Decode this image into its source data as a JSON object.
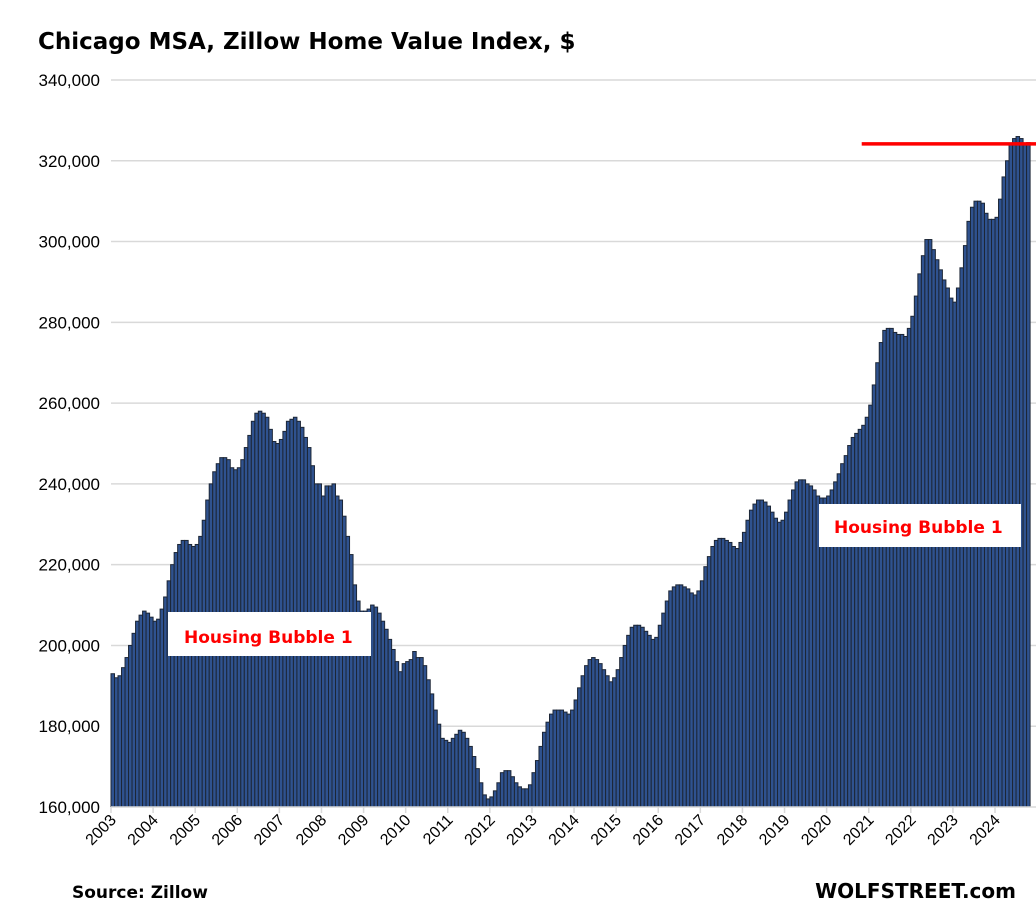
{
  "chart_data": {
    "type": "bar",
    "title": "Chicago MSA, Zillow Home Value Index, $",
    "xlabel": "",
    "ylabel": "",
    "ylim": [
      160000,
      340000
    ],
    "yticks": [
      "160,000",
      "180,000",
      "200,000",
      "220,000",
      "240,000",
      "260,000",
      "280,000",
      "300,000",
      "320,000",
      "340,000"
    ],
    "xticks": [
      "2003",
      "2004",
      "2005",
      "2006",
      "2007",
      "2008",
      "2009",
      "2010",
      "2011",
      "2012",
      "2013",
      "2014",
      "2015",
      "2016",
      "2017",
      "2018",
      "2019",
      "2020",
      "2021",
      "2022",
      "2023",
      "2024"
    ],
    "frequency": "monthly",
    "start": "2003-01",
    "grid": true,
    "colors": {
      "bar_fill": "#2f528f",
      "bar_edge": "#1c2636",
      "annotation": "#ff0000",
      "grid": "#d9d9d9"
    },
    "values": [
      193000,
      192000,
      192500,
      194500,
      197000,
      200000,
      203000,
      206000,
      207500,
      208500,
      208000,
      207000,
      206000,
      206500,
      209000,
      212000,
      216000,
      220000,
      223000,
      225000,
      226000,
      226000,
      225000,
      224500,
      225000,
      227000,
      231000,
      236000,
      240000,
      243000,
      245000,
      246500,
      246500,
      246000,
      244000,
      243500,
      244000,
      246000,
      249000,
      252000,
      255500,
      257500,
      258000,
      257500,
      256500,
      253500,
      250500,
      250000,
      251000,
      253000,
      255500,
      256000,
      256500,
      255500,
      254000,
      251500,
      249000,
      244500,
      240000,
      240000,
      237000,
      239500,
      239500,
      240000,
      237000,
      236000,
      232000,
      227000,
      222500,
      215000,
      211000,
      208500,
      208500,
      209000,
      210000,
      209500,
      208000,
      206000,
      204000,
      201500,
      199000,
      196000,
      193500,
      195500,
      196000,
      196500,
      198500,
      197000,
      197000,
      195000,
      191500,
      188000,
      184000,
      180500,
      177000,
      176500,
      176000,
      177000,
      178000,
      179000,
      178500,
      177000,
      175000,
      172500,
      169500,
      166000,
      163000,
      162000,
      162500,
      164000,
      166000,
      168500,
      169000,
      169000,
      167500,
      166000,
      165000,
      164500,
      164500,
      165500,
      168500,
      171500,
      175000,
      178500,
      181000,
      183000,
      184000,
      184000,
      184000,
      183500,
      183000,
      184000,
      186500,
      189500,
      192500,
      195000,
      196500,
      197000,
      196500,
      195500,
      194000,
      192500,
      191000,
      192000,
      194000,
      197000,
      200000,
      202500,
      204500,
      205000,
      205000,
      204500,
      203500,
      202500,
      201500,
      202000,
      205000,
      208000,
      211000,
      213500,
      214500,
      215000,
      215000,
      214500,
      214000,
      213000,
      212500,
      213500,
      216000,
      219500,
      222000,
      224500,
      226000,
      226500,
      226500,
      226000,
      225500,
      224500,
      224000,
      225500,
      228000,
      231000,
      233500,
      235000,
      236000,
      236000,
      235500,
      234500,
      233000,
      231500,
      230500,
      231000,
      233000,
      236000,
      238500,
      240500,
      241000,
      241000,
      240000,
      239500,
      238500,
      237000,
      236500,
      236500,
      237000,
      238500,
      240500,
      242500,
      245000,
      247000,
      249500,
      251500,
      252500,
      253500,
      254500,
      256500,
      259500,
      264500,
      270000,
      275000,
      278000,
      278500,
      278500,
      277500,
      277000,
      277000,
      276500,
      278500,
      281500,
      286500,
      292000,
      296500,
      300500,
      300500,
      298000,
      295500,
      293000,
      290500,
      288500,
      286000,
      285000,
      288500,
      293500,
      299000,
      305000,
      308500,
      310000,
      310000,
      309500,
      307000,
      305500,
      305500,
      306000,
      310500,
      316000,
      320000,
      324000,
      325500,
      326000,
      325500,
      324000,
      324500
    ],
    "reference_line": {
      "value": 324200,
      "from": "2020-11",
      "color": "#ff0000"
    },
    "annotations": [
      {
        "text": "Housing Bubble 1",
        "at": "2004-06"
      },
      {
        "text": "Housing Bubble 1",
        "at": "2019-10"
      }
    ],
    "source": "Source: Zillow",
    "brand": "WOLFSTREET.com"
  }
}
